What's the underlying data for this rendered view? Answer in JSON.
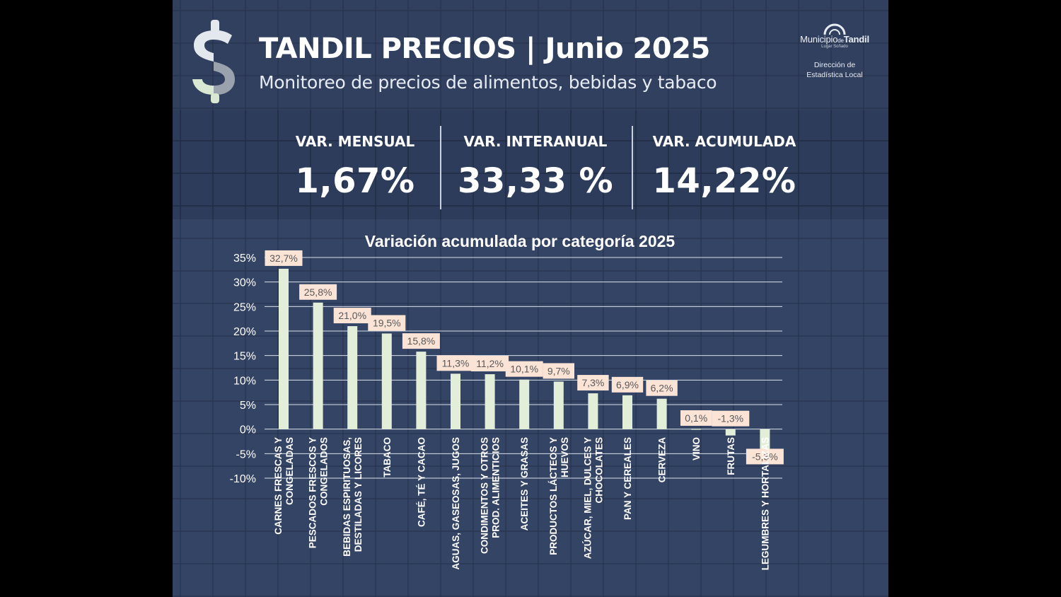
{
  "header": {
    "title": "TANDIL PRECIOS | Junio 2025",
    "subtitle": "Monitoreo de precios de alimentos, bebidas y tabaco"
  },
  "municipality": {
    "name_part1": "Municipio",
    "name_part2": "de",
    "name_part3": "Tandil",
    "tagline": "Lugar Soñado",
    "department_line1": "Dirección de",
    "department_line2": "Estadística Local"
  },
  "kpis": [
    {
      "label": "VAR. MENSUAL",
      "value": "1,67%"
    },
    {
      "label": "VAR. INTERANUAL",
      "value": "33,33 %"
    },
    {
      "label": "VAR. ACUMULADA",
      "value": "14,22%"
    }
  ],
  "colors": {
    "background": "#2f3e5c",
    "bar": "#e3eed8",
    "label_box": "#fbe3d6",
    "logo_green": "#d8e8d2",
    "logo_gray": "#9aa3ad"
  },
  "chart_data": {
    "type": "bar",
    "title": "Variación acumulada por categoría 2025",
    "categories": [
      [
        "CARNES FRESCAS Y",
        "CONGELADAS"
      ],
      [
        "PESCADOS FRESCOS Y",
        "CONGELADOS"
      ],
      [
        "BEBIDAS ESPIRITUOSAS,",
        "DESTILADAS Y LICORES"
      ],
      [
        "TABACO"
      ],
      [
        "CAFÉ, TÉ Y CACAO"
      ],
      [
        "AGUAS, GASEOSAS, JUGOS"
      ],
      [
        "CONDIMENTOS Y OTROS",
        "PROD. ALIMENTICIOS"
      ],
      [
        "ACEITES Y GRASAS"
      ],
      [
        "PRODUCTOS LÁCTEOS Y",
        "HUEVOS"
      ],
      [
        "AZÚCAR, MIEL, DULCES Y",
        "CHOCOLATES"
      ],
      [
        "PAN Y CEREALES"
      ],
      [
        "CERVEZA"
      ],
      [
        "VINO"
      ],
      [
        "FRUTAS"
      ],
      [
        "LEGUMBRES Y HORTALIZAS"
      ]
    ],
    "values": [
      32.7,
      25.8,
      21.0,
      19.5,
      15.8,
      11.3,
      11.2,
      10.1,
      9.7,
      7.3,
      6.9,
      6.2,
      0.1,
      -1.3,
      -5.3
    ],
    "value_labels": [
      "32,7%",
      "25,8%",
      "21,0%",
      "19,5%",
      "15,8%",
      "11,3%",
      "11,2%",
      "10,1%",
      "9,7%",
      "7,3%",
      "6,9%",
      "6,2%",
      "0,1%",
      "-1,3%",
      "-5,3%"
    ],
    "ylim": [
      -10,
      35
    ],
    "yticks": [
      35,
      30,
      25,
      20,
      15,
      10,
      5,
      0,
      -5,
      -10
    ],
    "ytick_labels": [
      "35%",
      "30%",
      "25%",
      "20%",
      "15%",
      "10%",
      "5%",
      "0%",
      "-5%",
      "-10%"
    ],
    "grid": true
  }
}
